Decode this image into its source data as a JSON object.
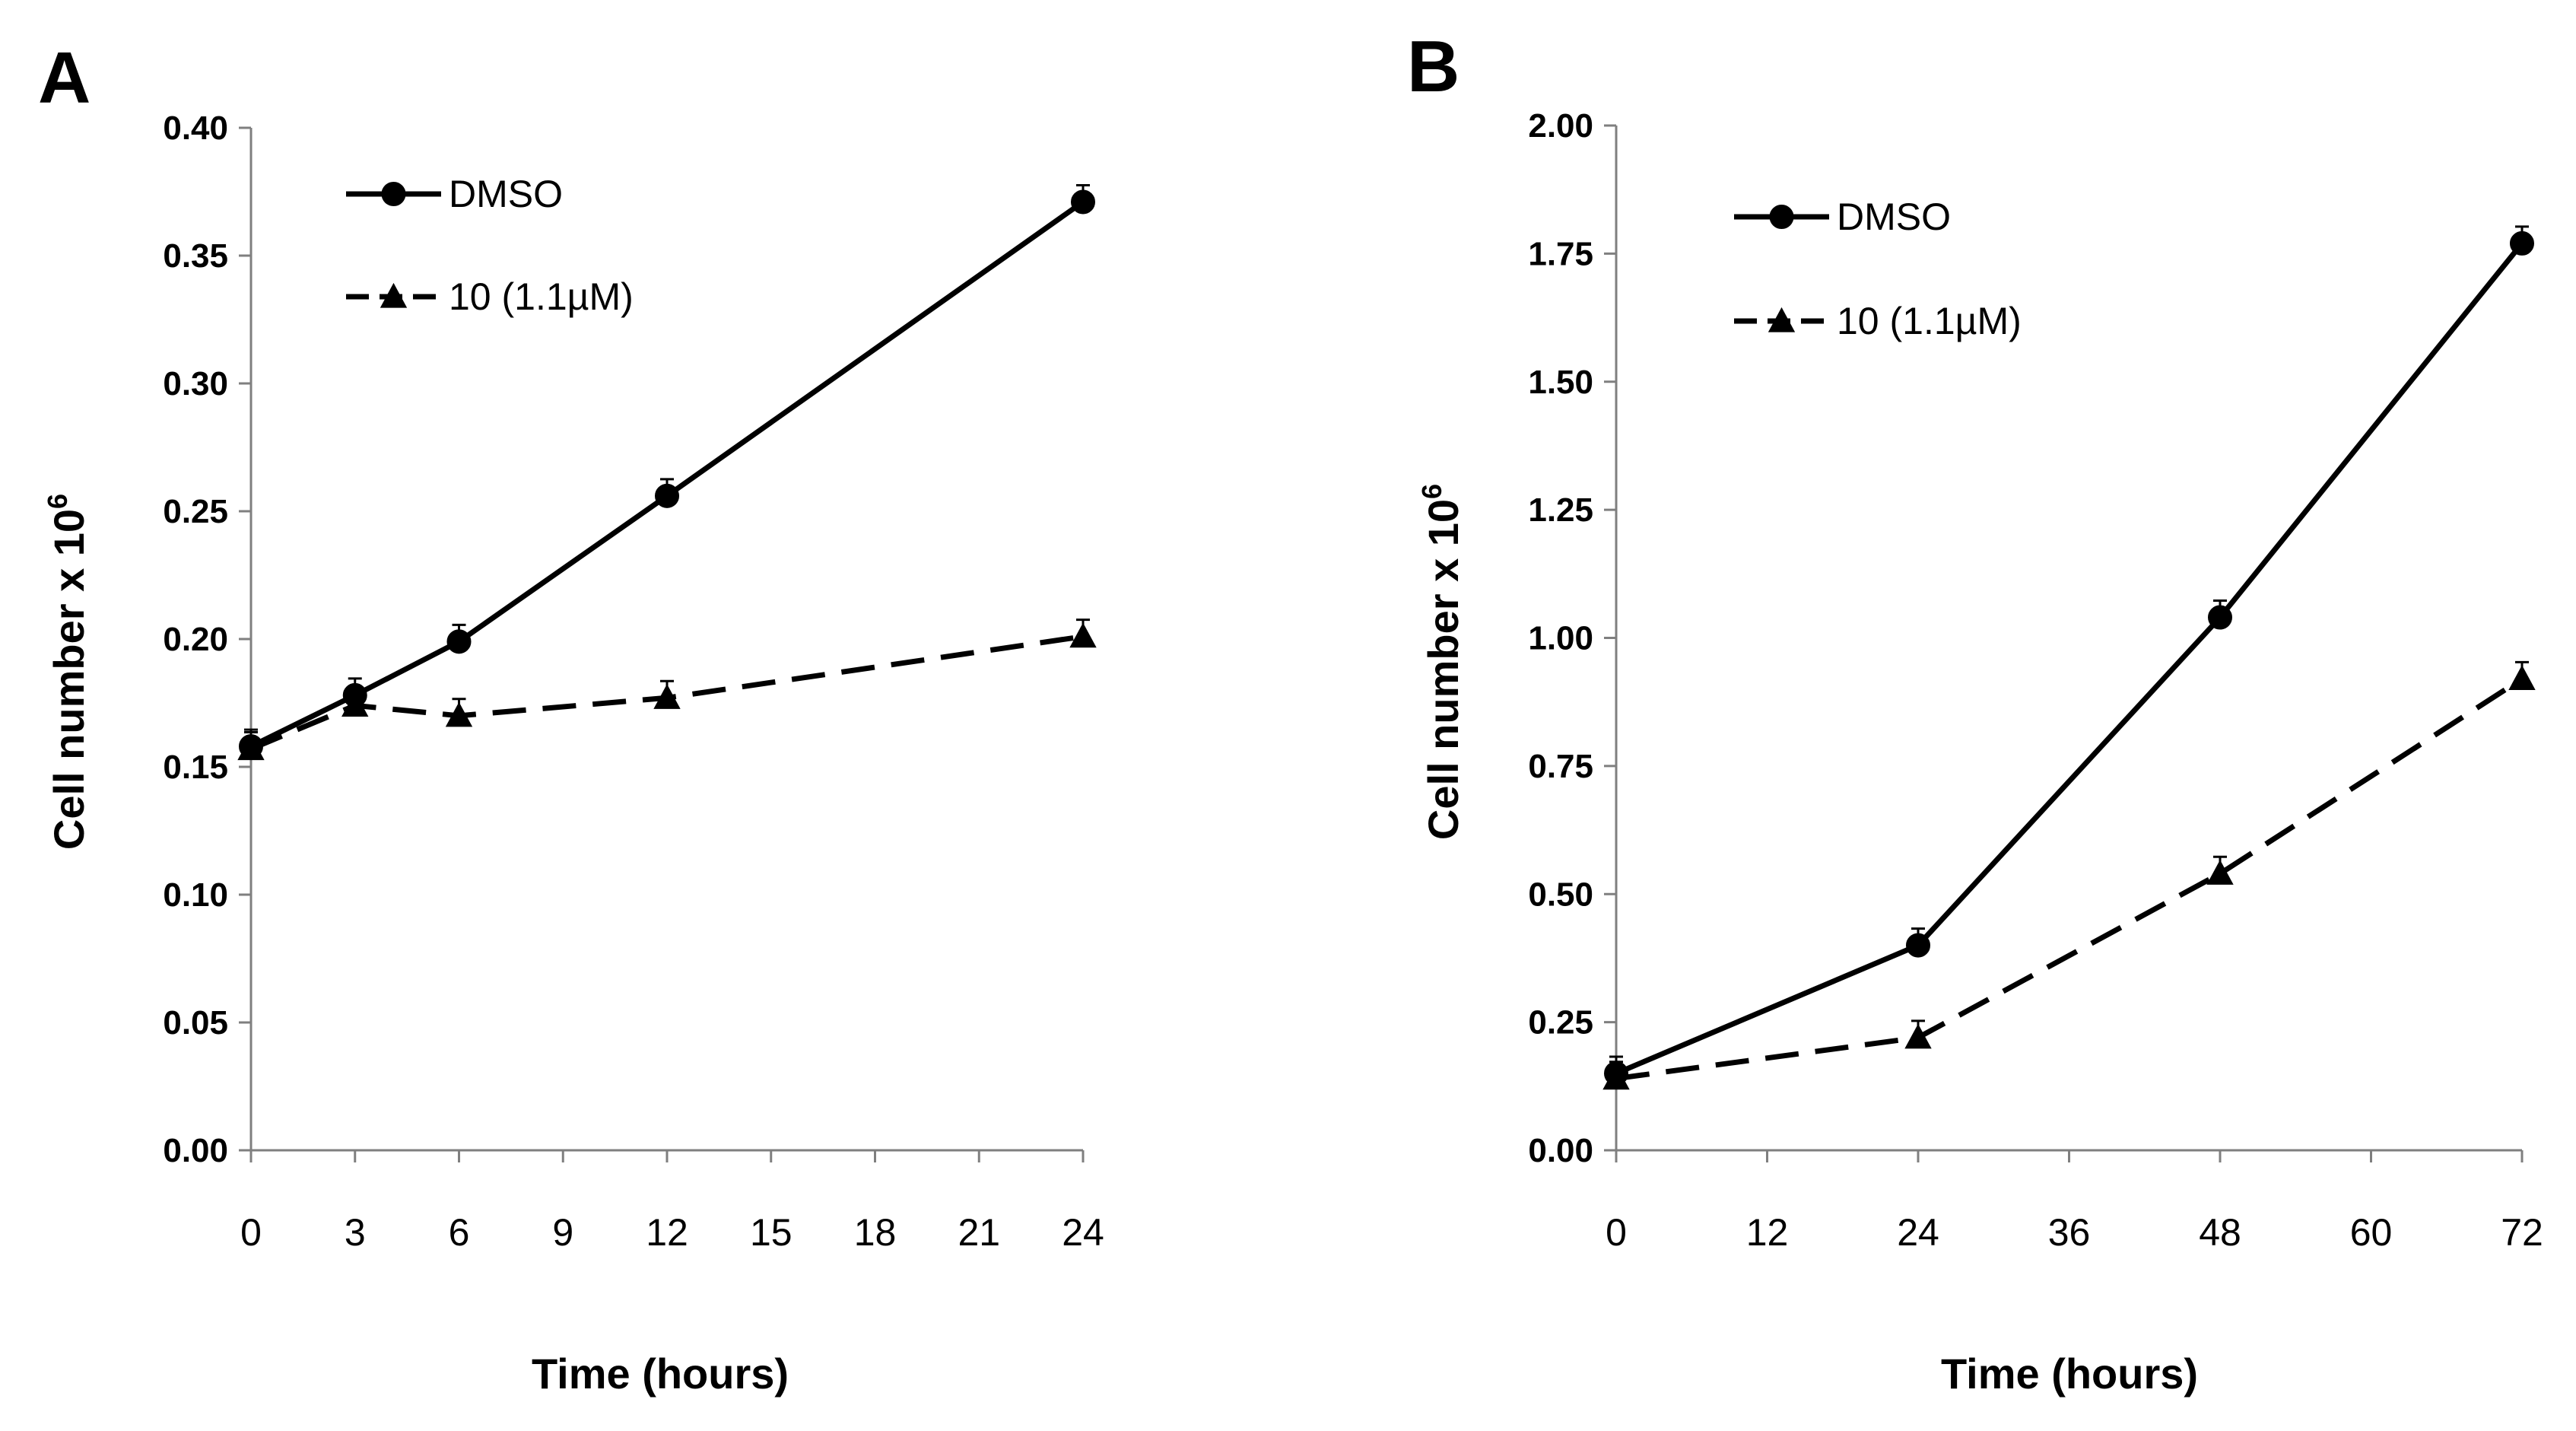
{
  "colors": {
    "line": "#000000",
    "axis": "#7f7f7f",
    "background": "#ffffff"
  },
  "chart_data": [
    {
      "panel": "A",
      "type": "line",
      "title": "",
      "xlabel": "Time (hours)",
      "ylabel": "Cell number x 10",
      "ylabel_sup": "6",
      "xlim": [
        0,
        24
      ],
      "ylim": [
        0,
        0.4
      ],
      "xticks": [
        "0",
        "3",
        "6",
        "9",
        "12",
        "15",
        "18",
        "21",
        "24"
      ],
      "yticks": [
        "0.00",
        "0.05",
        "0.10",
        "0.15",
        "0.20",
        "0.25",
        "0.30",
        "0.35",
        "0.40"
      ],
      "grid": false,
      "legend_position": "top-left",
      "series": [
        {
          "name": "DMSO",
          "marker": "circle",
          "dash": "solid",
          "x": [
            0,
            3,
            6,
            12,
            24
          ],
          "y": [
            0.158,
            0.178,
            0.199,
            0.256,
            0.371
          ]
        },
        {
          "name": "10 (1.1µM)",
          "marker": "triangle",
          "dash": "dashed",
          "x": [
            0,
            3,
            6,
            12,
            24
          ],
          "y": [
            0.157,
            0.174,
            0.17,
            0.177,
            0.201
          ]
        }
      ]
    },
    {
      "panel": "B",
      "type": "line",
      "title": "",
      "xlabel": "Time (hours)",
      "ylabel": "Cell number x 10",
      "ylabel_sup": "6",
      "xlim": [
        0,
        72
      ],
      "ylim": [
        0,
        2.0
      ],
      "xticks": [
        "0",
        "12",
        "24",
        "36",
        "48",
        "60",
        "72"
      ],
      "yticks": [
        "0.00",
        "0.25",
        "0.50",
        "0.75",
        "1.00",
        "1.25",
        "1.50",
        "1.75",
        "2.00"
      ],
      "grid": false,
      "legend_position": "top-left",
      "series": [
        {
          "name": "DMSO",
          "marker": "circle",
          "dash": "solid",
          "x": [
            0,
            24,
            48,
            72
          ],
          "y": [
            0.15,
            0.4,
            1.04,
            1.77
          ]
        },
        {
          "name": "10 (1.1µM)",
          "marker": "triangle",
          "dash": "dashed",
          "x": [
            0,
            24,
            48,
            72
          ],
          "y": [
            0.14,
            0.22,
            0.54,
            0.92
          ]
        }
      ]
    }
  ]
}
